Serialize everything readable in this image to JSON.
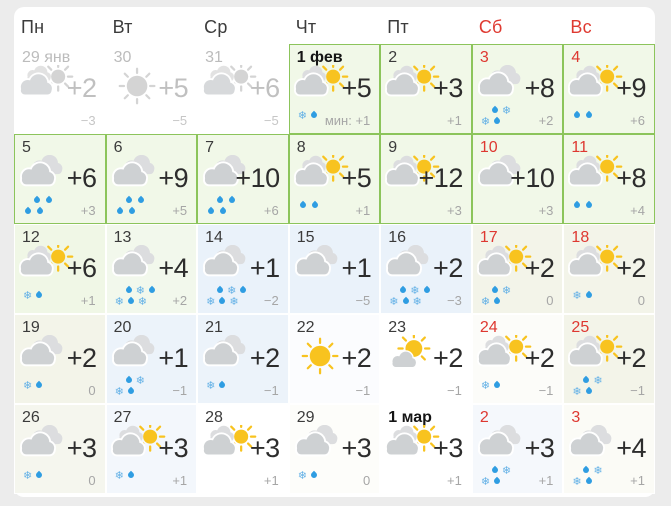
{
  "colors": {
    "page_background": "#ececec",
    "card_background": "#ffffff",
    "green_zone_background": "#f1f8e8",
    "green_zone_border": "#8cc45b",
    "weekend_red": "#de3831",
    "muted_gray": "#bcbcbc",
    "temp_text": "#2d2d2d",
    "min_temp_text": "#a6a6a6",
    "rain_blue": "#2f9de2",
    "snow_blue": "#64b1e6",
    "sun_yellow": "#f8c31f",
    "cloud_gray": "#ced1d3"
  },
  "weekdays": [
    {
      "label": "Пн",
      "weekend": false
    },
    {
      "label": "Вт",
      "weekend": false
    },
    {
      "label": "Ср",
      "weekend": false
    },
    {
      "label": "Чт",
      "weekend": false
    },
    {
      "label": "Пт",
      "weekend": false
    },
    {
      "label": "Сб",
      "weekend": true
    },
    {
      "label": "Вс",
      "weekend": true
    }
  ],
  "cells": [
    {
      "day": "29 янв",
      "style": "muted",
      "prev": true,
      "icon": "cloud-sun-gray",
      "precip": [],
      "temp": "+2",
      "min": "−3",
      "bg": "#ffffff",
      "green": false
    },
    {
      "day": "30",
      "style": "muted",
      "prev": true,
      "icon": "sun-gray",
      "precip": [],
      "temp": "+5",
      "min": "−5",
      "bg": "#ffffff",
      "green": false
    },
    {
      "day": "31",
      "style": "muted",
      "prev": true,
      "icon": "cloud-sun-gray",
      "precip": [],
      "temp": "+6",
      "min": "−5",
      "bg": "#ffffff",
      "green": false
    },
    {
      "day": "1 фев",
      "style": "bold",
      "prev": false,
      "icon": "cloud-sun",
      "precip": [
        [
          "snow",
          "rain"
        ]
      ],
      "temp": "+5",
      "min": "мин: +1",
      "bg": "#f1f8e8",
      "green": true
    },
    {
      "day": "2",
      "style": "normal",
      "prev": false,
      "icon": "cloud-sun",
      "precip": [],
      "temp": "+3",
      "min": "+1",
      "bg": "#f1f8e8",
      "green": true
    },
    {
      "day": "3",
      "style": "red",
      "prev": false,
      "icon": "cloud",
      "precip": [
        [
          "rain",
          "snow"
        ],
        [
          "snow",
          "rain"
        ]
      ],
      "temp": "+8",
      "min": "+2",
      "bg": "#f1f8e8",
      "green": true
    },
    {
      "day": "4",
      "style": "red",
      "prev": false,
      "icon": "cloud-sun",
      "precip": [
        [
          "rain",
          "rain"
        ]
      ],
      "temp": "+9",
      "min": "+6",
      "bg": "#f1f8e8",
      "green": true
    },
    {
      "day": "5",
      "style": "normal",
      "prev": false,
      "icon": "cloud",
      "precip": [
        [
          "rain",
          "rain"
        ],
        [
          "rain",
          "rain"
        ]
      ],
      "temp": "+6",
      "min": "+3",
      "bg": "#f1f8e8",
      "green": true
    },
    {
      "day": "6",
      "style": "normal",
      "prev": false,
      "icon": "cloud",
      "precip": [
        [
          "rain",
          "rain"
        ],
        [
          "rain",
          "rain"
        ]
      ],
      "temp": "+9",
      "min": "+5",
      "bg": "#f1f8e8",
      "green": true
    },
    {
      "day": "7",
      "style": "normal",
      "prev": false,
      "icon": "cloud",
      "precip": [
        [
          "rain",
          "rain"
        ],
        [
          "rain",
          "rain"
        ]
      ],
      "temp": "+10",
      "min": "+6",
      "bg": "#f1f8e8",
      "green": true
    },
    {
      "day": "8",
      "style": "normal",
      "prev": false,
      "icon": "cloud-sun",
      "precip": [
        [
          "rain",
          "rain"
        ]
      ],
      "temp": "+5",
      "min": "+1",
      "bg": "#f1f8e8",
      "green": true
    },
    {
      "day": "9",
      "style": "normal",
      "prev": false,
      "icon": "cloud-sun",
      "precip": [],
      "temp": "+12",
      "min": "+3",
      "bg": "#f1f8e8",
      "green": true
    },
    {
      "day": "10",
      "style": "red",
      "prev": false,
      "icon": "cloud",
      "precip": [],
      "temp": "+10",
      "min": "+3",
      "bg": "#f1f8e8",
      "green": true
    },
    {
      "day": "11",
      "style": "red",
      "prev": false,
      "icon": "cloud-sun",
      "precip": [
        [
          "rain",
          "rain"
        ]
      ],
      "temp": "+8",
      "min": "+4",
      "bg": "#f1f8e8",
      "green": true
    },
    {
      "day": "12",
      "style": "normal",
      "prev": false,
      "icon": "cloud-sun",
      "precip": [
        [
          "snow",
          "rain"
        ]
      ],
      "temp": "+6",
      "min": "+1",
      "bg": "#f0f7e6",
      "green": false
    },
    {
      "day": "13",
      "style": "normal",
      "prev": false,
      "icon": "cloud",
      "precip": [
        [
          "rain",
          "snow",
          "rain"
        ],
        [
          "snow",
          "rain",
          "snow"
        ]
      ],
      "temp": "+4",
      "min": "+2",
      "bg": "#f2f8ec",
      "green": false
    },
    {
      "day": "14",
      "style": "normal",
      "prev": false,
      "icon": "cloud",
      "precip": [
        [
          "rain",
          "snow",
          "rain"
        ],
        [
          "snow",
          "rain",
          "snow"
        ]
      ],
      "temp": "+1",
      "min": "−2",
      "bg": "#eaf2fa",
      "green": false
    },
    {
      "day": "15",
      "style": "normal",
      "prev": false,
      "icon": "cloud",
      "precip": [],
      "temp": "+1",
      "min": "−5",
      "bg": "#eaf2fa",
      "green": false
    },
    {
      "day": "16",
      "style": "normal",
      "prev": false,
      "icon": "cloud",
      "precip": [
        [
          "rain",
          "snow",
          "rain"
        ],
        [
          "snow",
          "rain",
          "snow"
        ]
      ],
      "temp": "+2",
      "min": "−3",
      "bg": "#eaf2fa",
      "green": false
    },
    {
      "day": "17",
      "style": "red",
      "prev": false,
      "icon": "cloud-sun",
      "precip": [
        [
          "rain",
          "snow"
        ],
        [
          "snow",
          "rain"
        ]
      ],
      "temp": "+2",
      "min": "0",
      "bg": "#f3f4e9",
      "green": false
    },
    {
      "day": "18",
      "style": "red",
      "prev": false,
      "icon": "cloud-sun",
      "precip": [
        [
          "snow",
          "rain"
        ]
      ],
      "temp": "+2",
      "min": "0",
      "bg": "#f3f4e9",
      "green": false
    },
    {
      "day": "19",
      "style": "normal",
      "prev": false,
      "icon": "cloud",
      "precip": [
        [
          "snow",
          "rain"
        ]
      ],
      "temp": "+2",
      "min": "0",
      "bg": "#f3f4e9",
      "green": false
    },
    {
      "day": "20",
      "style": "normal",
      "prev": false,
      "icon": "cloud",
      "precip": [
        [
          "rain",
          "snow"
        ],
        [
          "snow",
          "rain"
        ]
      ],
      "temp": "+1",
      "min": "−1",
      "bg": "#ecf3fa",
      "green": false
    },
    {
      "day": "21",
      "style": "normal",
      "prev": false,
      "icon": "cloud",
      "precip": [
        [
          "snow",
          "rain"
        ]
      ],
      "temp": "+2",
      "min": "−1",
      "bg": "#ecf3fa",
      "green": false
    },
    {
      "day": "22",
      "style": "normal",
      "prev": false,
      "icon": "sun",
      "precip": [],
      "temp": "+2",
      "min": "−1",
      "bg": "#fbfcfe",
      "green": false
    },
    {
      "day": "23",
      "style": "normal",
      "prev": false,
      "icon": "sun-cloud",
      "precip": [],
      "temp": "+2",
      "min": "−1",
      "bg": "#ffffff",
      "green": false
    },
    {
      "day": "24",
      "style": "red",
      "prev": false,
      "icon": "cloud-sun",
      "precip": [
        [
          "snow",
          "rain"
        ]
      ],
      "temp": "+2",
      "min": "−1",
      "bg": "#fcfcf9",
      "green": false
    },
    {
      "day": "25",
      "style": "red",
      "prev": false,
      "icon": "cloud-sun",
      "precip": [
        [
          "rain",
          "snow"
        ],
        [
          "snow",
          "rain"
        ]
      ],
      "temp": "+2",
      "min": "−1",
      "bg": "#f3f4e9",
      "green": false
    },
    {
      "day": "26",
      "style": "normal",
      "prev": false,
      "icon": "cloud",
      "precip": [
        [
          "snow",
          "rain"
        ]
      ],
      "temp": "+3",
      "min": "0",
      "bg": "#f5f6ee",
      "green": false
    },
    {
      "day": "27",
      "style": "normal",
      "prev": false,
      "icon": "cloud-sun",
      "precip": [
        [
          "snow",
          "rain"
        ]
      ],
      "temp": "+3",
      "min": "+1",
      "bg": "#f3f7fc",
      "green": false
    },
    {
      "day": "28",
      "style": "normal",
      "prev": false,
      "icon": "cloud-sun",
      "precip": [],
      "temp": "+3",
      "min": "+1",
      "bg": "#ffffff",
      "green": false
    },
    {
      "day": "29",
      "style": "normal",
      "prev": false,
      "icon": "cloud",
      "precip": [
        [
          "snow",
          "rain"
        ]
      ],
      "temp": "+3",
      "min": "0",
      "bg": "#fdfdfa",
      "green": false
    },
    {
      "day": "1 мар",
      "style": "bold",
      "prev": false,
      "icon": "cloud-sun",
      "precip": [],
      "temp": "+3",
      "min": "+1",
      "bg": "#ffffff",
      "green": false
    },
    {
      "day": "2",
      "style": "red",
      "prev": false,
      "icon": "cloud",
      "precip": [
        [
          "rain",
          "snow"
        ],
        [
          "snow",
          "rain"
        ]
      ],
      "temp": "+3",
      "min": "+1",
      "bg": "#f5f8fc",
      "green": false
    },
    {
      "day": "3",
      "style": "red",
      "prev": false,
      "icon": "cloud",
      "precip": [
        [
          "rain",
          "snow"
        ],
        [
          "snow",
          "rain"
        ]
      ],
      "temp": "+4",
      "min": "+1",
      "bg": "#fbfbf6",
      "green": false
    }
  ]
}
